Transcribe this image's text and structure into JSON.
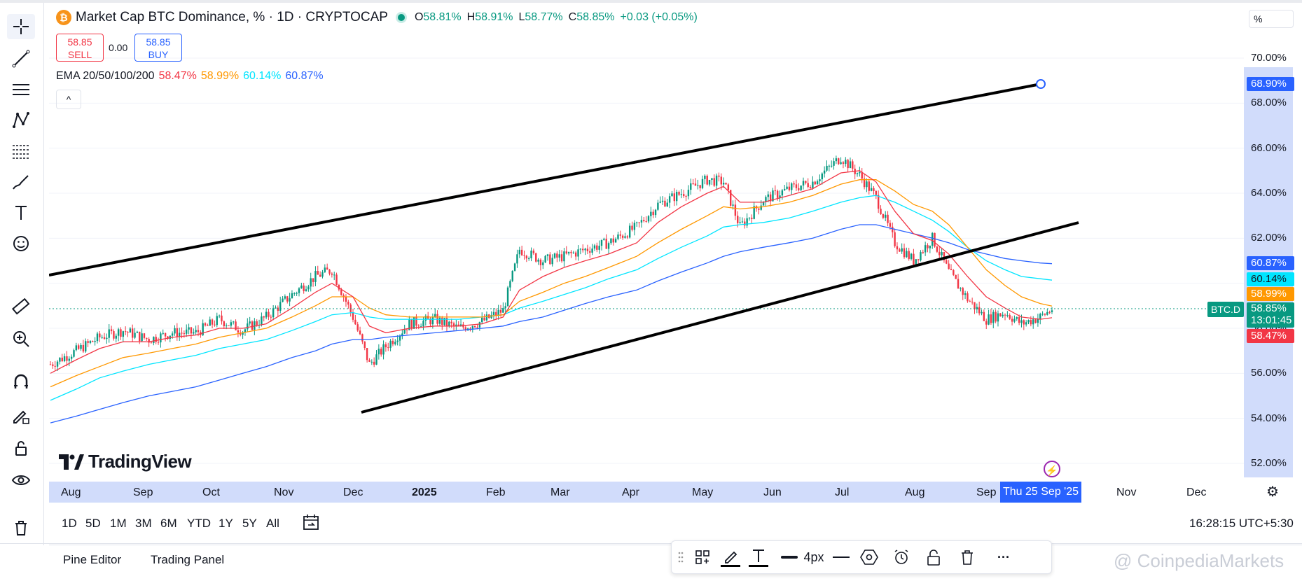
{
  "legend": {
    "logo_glyph": "₿",
    "title": "Market Cap BTC Dominance, % · 1D · CRYPTOCAP",
    "ohlc": [
      {
        "key": "O",
        "value": "58.81%"
      },
      {
        "key": "H",
        "value": "58.91%"
      },
      {
        "key": "L",
        "value": "58.77%"
      },
      {
        "key": "C",
        "value": "58.85%"
      }
    ],
    "change": "+0.03 (+0.05%)"
  },
  "trade": {
    "sell_price": "58.85",
    "sell_label": "SELL",
    "spread": "0.00",
    "buy_price": "58.85",
    "buy_label": "BUY"
  },
  "ema": {
    "label": "EMA 20/50/100/200",
    "values": [
      {
        "value": "58.47%",
        "color": "#f23645"
      },
      {
        "value": "58.99%",
        "color": "#ff9800"
      },
      {
        "value": "60.14%",
        "color": "#00e5ff"
      },
      {
        "value": "60.87%",
        "color": "#2962ff"
      }
    ]
  },
  "collapse_glyph": "^",
  "logo_text": "TradingView",
  "price_axis": {
    "unit": "%",
    "ticks": [
      "70.00%",
      "68.00%",
      "66.00%",
      "64.00%",
      "62.00%",
      "60.00%",
      "58.00%",
      "56.00%",
      "54.00%",
      "52.00%"
    ],
    "labels": {
      "trendline": "68.90%",
      "ema200": "60.87%",
      "ema100": "60.14%",
      "ema50": "58.99%",
      "last": "58.85%",
      "countdown": "13:01:45",
      "ema20": "58.47%"
    },
    "symbol": "BTC.D"
  },
  "time_axis": {
    "labels": [
      "Aug",
      "Sep",
      "Oct",
      "Nov",
      "Dec",
      "2025",
      "Feb",
      "Mar",
      "Apr",
      "May",
      "Jun",
      "Jul",
      "Aug",
      "Sep",
      "Nov",
      "Dec"
    ],
    "cursor": "Thu 25 Sep '25"
  },
  "ranges": [
    "1D",
    "5D",
    "1M",
    "3M",
    "6M",
    "YTD",
    "1Y",
    "5Y",
    "All"
  ],
  "clock": "16:28:15 UTC+5:30",
  "panels": {
    "pine": "Pine Editor",
    "trading": "Trading Panel"
  },
  "drawing_toolbar": {
    "width_label": "4px",
    "more": "···"
  },
  "watermark": "@ CoinpediaMarkets",
  "chart_data": {
    "type": "line",
    "title": "Market Cap BTC Dominance, % · 1D · CRYPTOCAP",
    "xlabel": "",
    "ylabel": "",
    "ylim": [
      51.2,
      71.2
    ],
    "x": [
      "2024-07-25",
      "2024-08-05",
      "2024-08-15",
      "2024-08-25",
      "2024-09-05",
      "2024-09-15",
      "2024-09-25",
      "2024-10-05",
      "2024-10-15",
      "2024-10-25",
      "2024-11-05",
      "2024-11-15",
      "2024-11-22",
      "2024-12-01",
      "2024-12-08",
      "2024-12-15",
      "2024-12-25",
      "2025-01-05",
      "2025-01-15",
      "2025-01-25",
      "2025-02-03",
      "2025-02-10",
      "2025-02-20",
      "2025-03-01",
      "2025-03-10",
      "2025-03-20",
      "2025-04-01",
      "2025-04-10",
      "2025-04-20",
      "2025-05-01",
      "2025-05-08",
      "2025-05-15",
      "2025-05-25",
      "2025-06-05",
      "2025-06-15",
      "2025-06-27",
      "2025-07-05",
      "2025-07-12",
      "2025-07-20",
      "2025-07-28",
      "2025-08-05",
      "2025-08-12",
      "2025-08-20",
      "2025-08-28",
      "2025-09-05",
      "2025-09-12",
      "2025-09-20",
      "2025-09-25"
    ],
    "series": [
      {
        "values": [
          56.4,
          57.0,
          57.6,
          57.9,
          57.5,
          57.8,
          57.8,
          58.4,
          57.9,
          58.5,
          59.5,
          60.3,
          60.6,
          58.5,
          56.4,
          57.2,
          58.2,
          58.4,
          58.0,
          58.3,
          58.8,
          61.5,
          61.0,
          61.2,
          61.5,
          61.8,
          62.5,
          63.5,
          64.0,
          64.6,
          64.5,
          62.5,
          63.7,
          64.2,
          64.5,
          65.6,
          64.8,
          63.8,
          61.8,
          61.0,
          62.0,
          60.5,
          59.3,
          58.4,
          58.7,
          58.2,
          58.5,
          58.85
        ]
      },
      {
        "values": [
          56.0,
          56.6,
          57.1,
          57.4,
          57.4,
          57.6,
          57.7,
          58.0,
          58.0,
          58.2,
          58.9,
          59.6,
          60.0,
          59.4,
          58.1,
          57.8,
          58.0,
          58.1,
          58.1,
          58.2,
          58.5,
          59.7,
          60.3,
          60.7,
          61.0,
          61.3,
          61.8,
          62.7,
          63.4,
          64.0,
          64.3,
          63.6,
          63.6,
          63.9,
          64.2,
          64.9,
          65.0,
          64.5,
          63.2,
          62.2,
          61.9,
          61.3,
          60.3,
          59.4,
          58.9,
          58.5,
          58.4,
          58.47
        ]
      },
      {
        "values": [
          55.4,
          55.9,
          56.3,
          56.7,
          56.9,
          57.1,
          57.3,
          57.6,
          57.8,
          58.0,
          58.5,
          59.0,
          59.4,
          59.4,
          58.9,
          58.6,
          58.5,
          58.5,
          58.5,
          58.5,
          58.6,
          59.2,
          59.6,
          60.0,
          60.3,
          60.7,
          61.2,
          61.8,
          62.4,
          63.0,
          63.4,
          63.3,
          63.4,
          63.6,
          63.9,
          64.4,
          64.6,
          64.6,
          64.1,
          63.5,
          63.2,
          62.6,
          61.6,
          60.6,
          59.9,
          59.4,
          59.1,
          58.99
        ]
      },
      {
        "values": [
          54.8,
          55.3,
          55.8,
          56.1,
          56.4,
          56.6,
          56.8,
          57.1,
          57.3,
          57.5,
          57.9,
          58.3,
          58.6,
          58.7,
          58.5,
          58.4,
          58.4,
          58.4,
          58.4,
          58.5,
          58.6,
          58.9,
          59.2,
          59.5,
          59.8,
          60.2,
          60.6,
          61.1,
          61.6,
          62.1,
          62.5,
          62.6,
          62.7,
          62.9,
          63.2,
          63.6,
          63.8,
          63.9,
          63.6,
          63.2,
          62.8,
          62.3,
          61.6,
          61.0,
          60.6,
          60.3,
          60.2,
          60.14
        ]
      },
      {
        "values": [
          53.8,
          54.1,
          54.4,
          54.7,
          55.0,
          55.2,
          55.4,
          55.7,
          56.0,
          56.3,
          56.7,
          57.0,
          57.3,
          57.5,
          57.5,
          57.6,
          57.7,
          57.8,
          57.9,
          58.0,
          58.1,
          58.3,
          58.5,
          58.8,
          59.1,
          59.4,
          59.7,
          60.1,
          60.5,
          60.9,
          61.2,
          61.4,
          61.6,
          61.8,
          62.0,
          62.4,
          62.6,
          62.6,
          62.4,
          62.2,
          62.0,
          61.8,
          61.5,
          61.3,
          61.1,
          61.0,
          60.9,
          60.87
        ]
      }
    ]
  }
}
